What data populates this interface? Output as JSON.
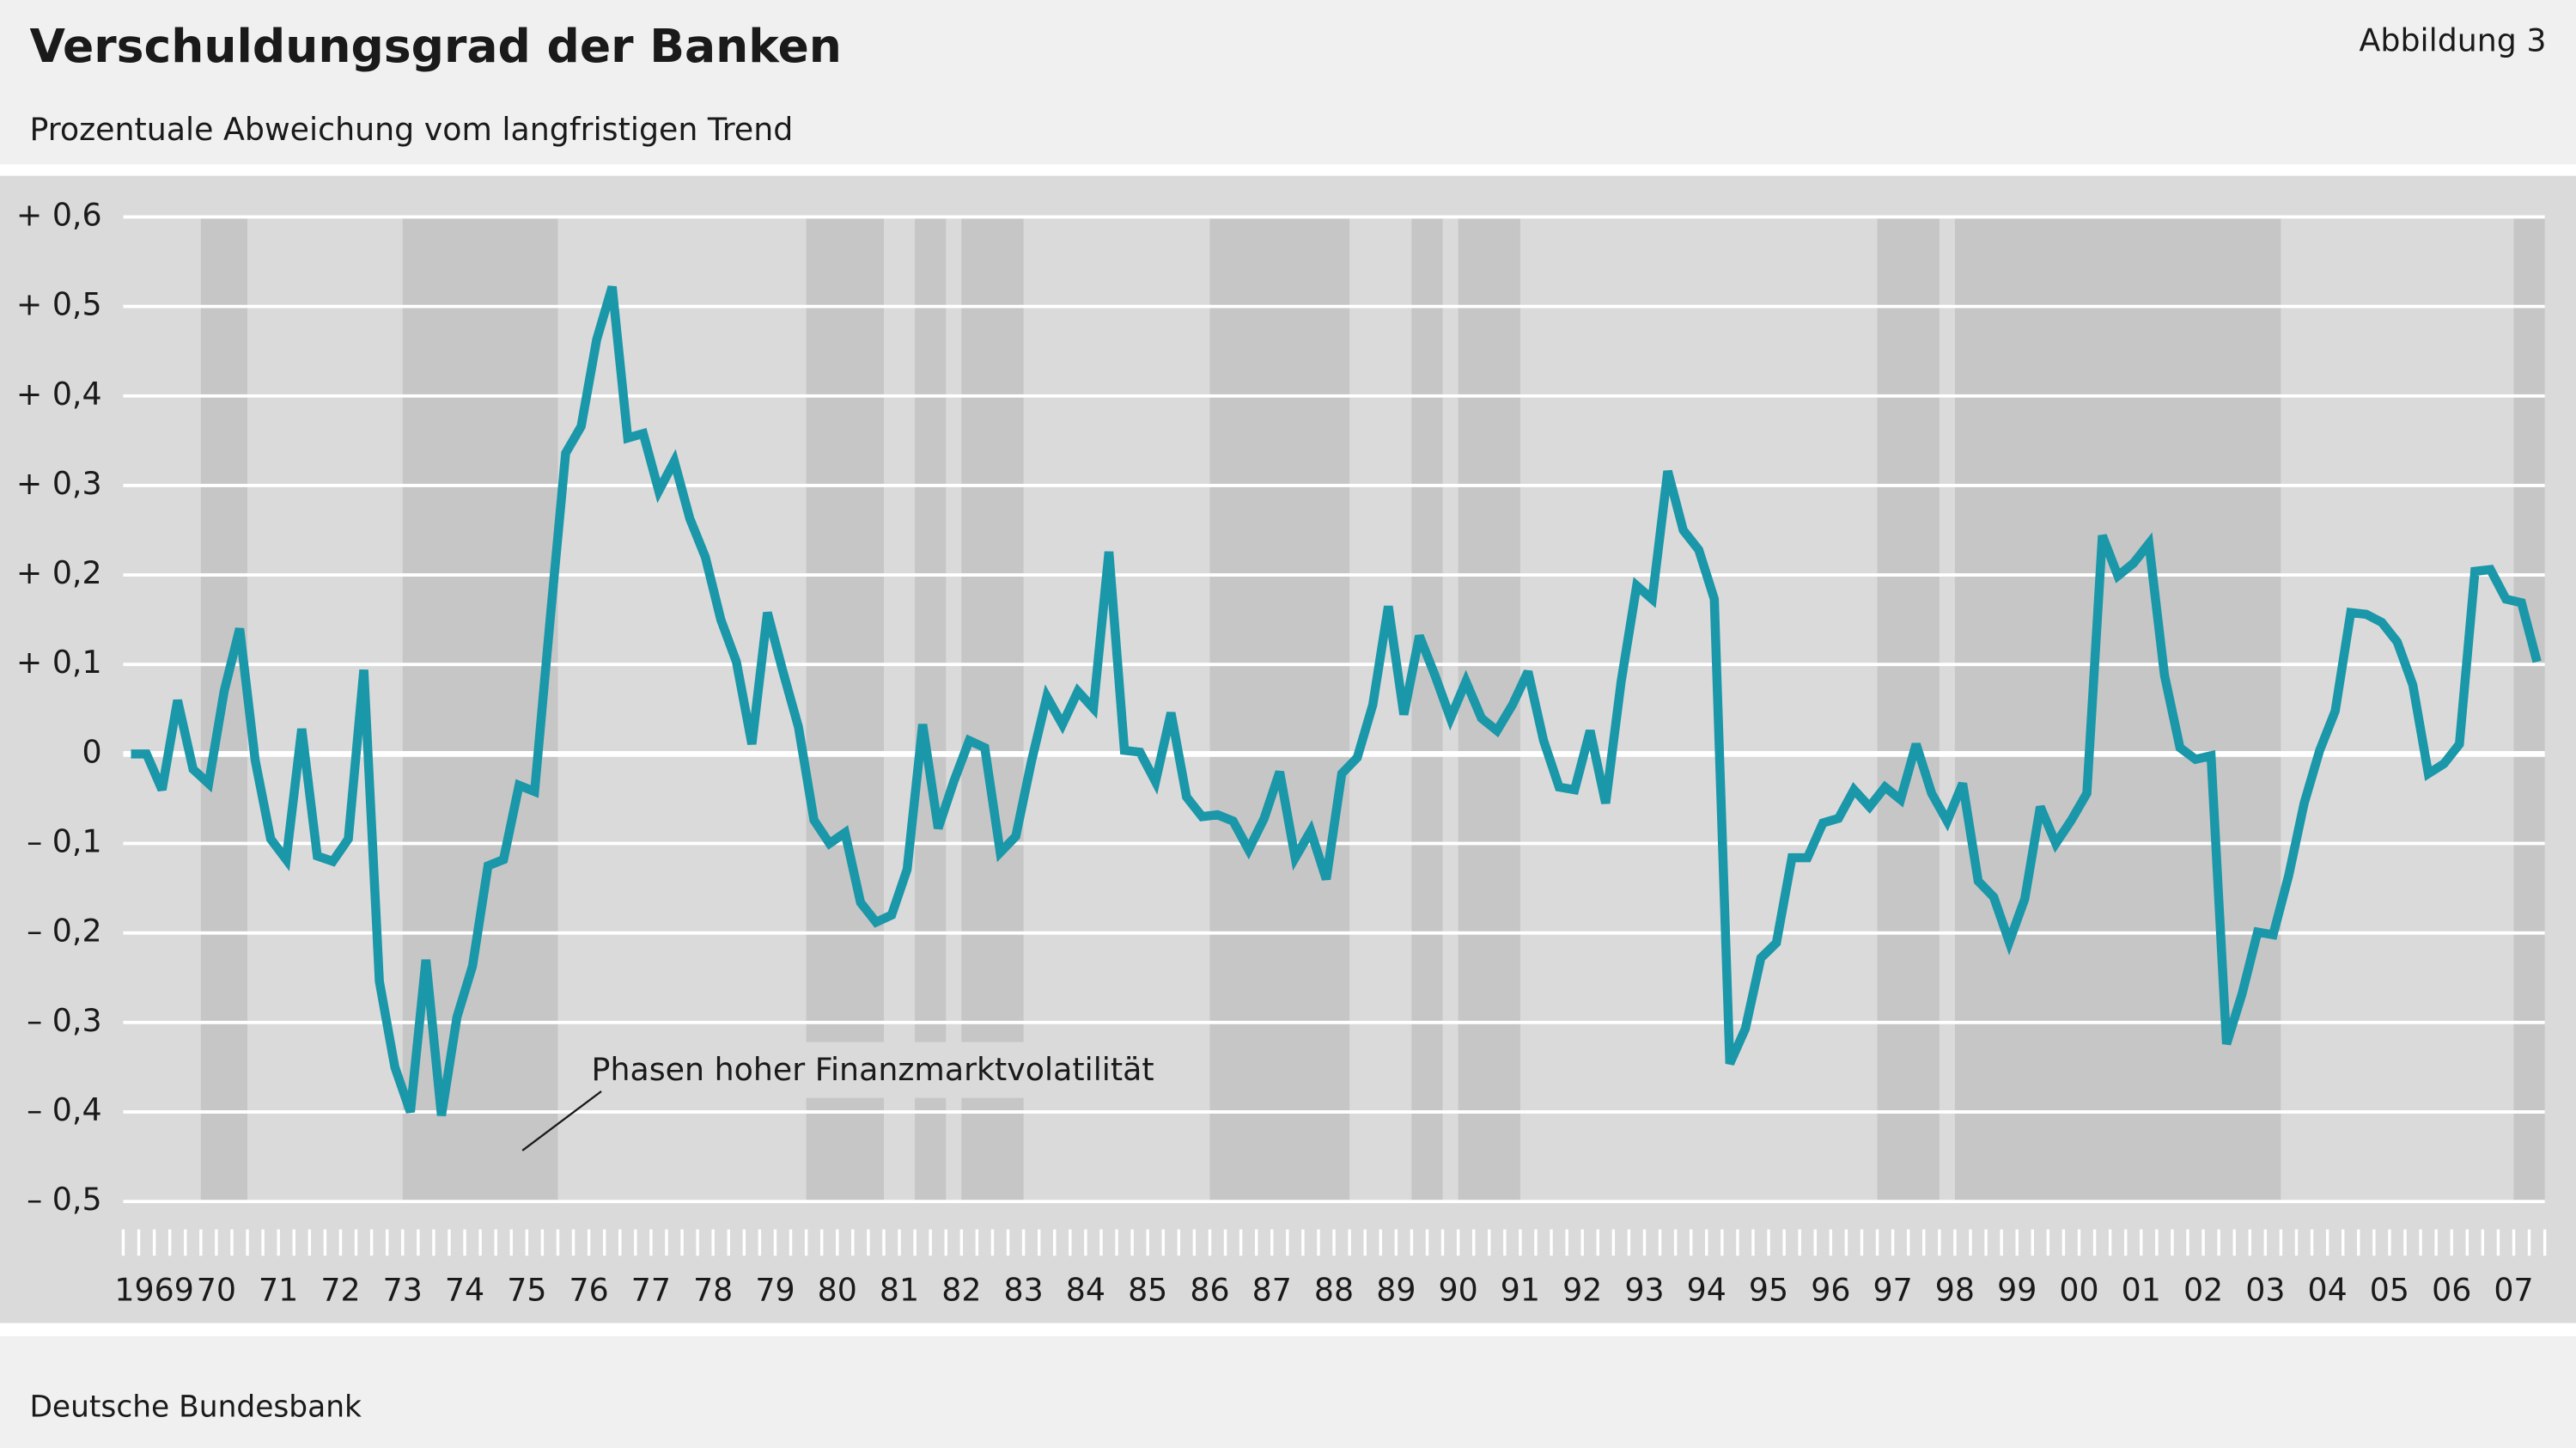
{
  "chart_data": {
    "type": "line",
    "title": "Verschuldungsgrad der Banken",
    "subtitle": "Prozentuale Abweichung vom langfristigen Trend",
    "figure_label": "Abbildung 3",
    "source": "Deutsche Bundesbank",
    "annotation": "Phasen hoher Finanzmarktvolatilität",
    "categories": [
      "1969",
      null,
      null,
      null,
      "70",
      null,
      null,
      null,
      "71",
      null,
      null,
      null,
      "72",
      null,
      null,
      null,
      "73",
      null,
      null,
      null,
      "74",
      null,
      null,
      null,
      "75",
      null,
      null,
      null,
      "76",
      null,
      null,
      null,
      "77",
      null,
      null,
      null,
      "78",
      null,
      null,
      null,
      "79",
      null,
      null,
      null,
      "80",
      null,
      null,
      null,
      "81",
      null,
      null,
      null,
      "82",
      null,
      null,
      null,
      "83",
      null,
      null,
      null,
      "84",
      null,
      null,
      null,
      "85",
      null,
      null,
      null,
      "86",
      null,
      null,
      null,
      "87",
      null,
      null,
      null,
      "88",
      null,
      null,
      null,
      "89",
      null,
      null,
      null,
      "90",
      null,
      null,
      null,
      "91",
      null,
      null,
      null,
      "92",
      null,
      null,
      null,
      "93",
      null,
      null,
      null,
      "94",
      null,
      null,
      null,
      "95",
      null,
      null,
      null,
      "96",
      null,
      null,
      null,
      "97",
      null,
      null,
      null,
      "98",
      null,
      null,
      null,
      "99",
      null,
      null,
      null,
      "00",
      null,
      null,
      null,
      "01",
      null,
      null,
      null,
      "02",
      null,
      null,
      null,
      "03",
      null,
      null,
      null,
      "04",
      null,
      null,
      null,
      "05",
      null,
      null,
      null,
      "06",
      null,
      null,
      null,
      "07",
      null,
      null,
      null
    ],
    "series": [
      {
        "color": "#1a97a8",
        "values": [
          0,
          0,
          -0.04,
          0.06,
          -0.017,
          -0.033,
          0.07,
          0.14,
          -0.007,
          -0.095,
          -0.118,
          0.028,
          -0.114,
          -0.12,
          -0.095,
          0.094,
          -0.254,
          -0.35,
          -0.4,
          -0.23,
          -0.404,
          -0.294,
          -0.237,
          -0.125,
          -0.118,
          -0.035,
          -0.042,
          0.15,
          0.336,
          0.366,
          0.463,
          0.522,
          0.353,
          0.358,
          0.294,
          0.327,
          0.263,
          0.22,
          0.15,
          0.103,
          0.011,
          0.158,
          0.092,
          0.03,
          -0.074,
          -0.1,
          -0.088,
          -0.166,
          -0.188,
          -0.18,
          -0.129,
          0.033,
          -0.083,
          -0.031,
          0.015,
          0.007,
          -0.11,
          -0.092,
          -0.009,
          0.064,
          0.033,
          0.07,
          0.051,
          0.226,
          0.004,
          0.002,
          -0.031,
          0.046,
          -0.048,
          -0.07,
          -0.068,
          -0.075,
          -0.107,
          -0.072,
          -0.02,
          -0.116,
          -0.086,
          -0.14,
          -0.022,
          -0.004,
          0.055,
          0.165,
          0.044,
          0.132,
          0.088,
          0.04,
          0.081,
          0.04,
          0.026,
          0.055,
          0.092,
          0.015,
          -0.037,
          -0.04,
          0.026,
          -0.055,
          0.081,
          0.188,
          0.173,
          0.316,
          0.25,
          0.228,
          0.173,
          -0.346,
          -0.307,
          -0.228,
          -0.211,
          -0.116,
          -0.116,
          -0.077,
          -0.072,
          -0.04,
          -0.059,
          -0.037,
          -0.051,
          0.011,
          -0.044,
          -0.075,
          -0.033,
          -0.142,
          -0.16,
          -0.21,
          -0.162,
          -0.059,
          -0.1,
          -0.074,
          -0.044,
          0.244,
          0.199,
          0.213,
          0.235,
          0.088,
          0.007,
          -0.006,
          -0.002,
          -0.324,
          -0.268,
          -0.199,
          -0.202,
          -0.136,
          -0.055,
          0.004,
          0.048,
          0.158,
          0.156,
          0.147,
          0.125,
          0.077,
          -0.022,
          -0.011,
          0.011,
          0.204,
          0.206,
          0.173,
          0.169,
          0.103
        ]
      }
    ],
    "xlim": [
      1969,
      2008
    ],
    "shaded_periods": [
      [
        1970.25,
        1971
      ],
      [
        1973.5,
        1976
      ],
      [
        1980,
        1981.25
      ],
      [
        1981.75,
        1982.25
      ],
      [
        1982.5,
        1983.5
      ],
      [
        1986.5,
        1988.75
      ],
      [
        1989.75,
        1990.25
      ],
      [
        1990.5,
        1991.5
      ],
      [
        1997.25,
        1998.25
      ],
      [
        1998.5,
        2003.75
      ],
      [
        2007.5,
        2008
      ]
    ],
    "shade_color": "#c6c6c6",
    "ylim": [
      -0.5,
      0.6
    ],
    "yticks": [
      {
        "value": -0.5,
        "label": "– 0,5"
      },
      {
        "value": -0.4,
        "label": "– 0,4"
      },
      {
        "value": -0.3,
        "label": "– 0,3"
      },
      {
        "value": -0.2,
        "label": "– 0,2"
      },
      {
        "value": -0.1,
        "label": "– 0,1"
      },
      0,
      {
        "value": 0.1,
        "label": "+ 0,1"
      },
      {
        "value": 0.2,
        "label": "+ 0,2"
      },
      {
        "value": 0.3,
        "label": "+ 0,3"
      },
      {
        "value": 0.4,
        "label": "+ 0,4"
      },
      {
        "value": 0.5,
        "label": "+ 0,5"
      },
      {
        "value": 0.6,
        "label": "+ 0,6"
      }
    ],
    "grid": true
  }
}
